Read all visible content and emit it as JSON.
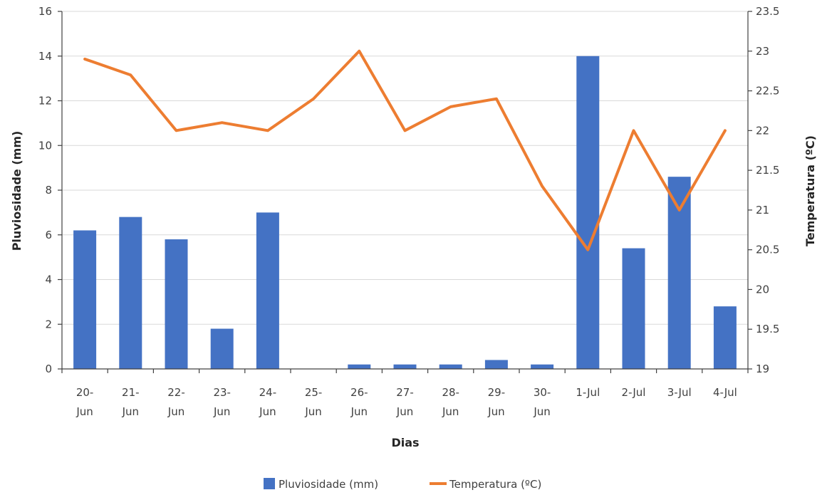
{
  "chart_data": {
    "type": "bar",
    "categories": [
      [
        "20-",
        "Jun"
      ],
      [
        "21-",
        "Jun"
      ],
      [
        "22-",
        "Jun"
      ],
      [
        "23-",
        "Jun"
      ],
      [
        "24-",
        "Jun"
      ],
      [
        "25-",
        "Jun"
      ],
      [
        "26-",
        "Jun"
      ],
      [
        "27-",
        "Jun"
      ],
      [
        "28-",
        "Jun"
      ],
      [
        "29-",
        "Jun"
      ],
      [
        "30-",
        "Jun"
      ],
      [
        "1-Jul"
      ],
      [
        "2-Jul"
      ],
      [
        "3-Jul"
      ],
      [
        "4-Jul"
      ]
    ],
    "series": [
      {
        "name": "Pluviosidade (mm)",
        "type": "bar",
        "axis": "left",
        "color": "#4472c4",
        "values": [
          6.2,
          6.8,
          5.8,
          1.8,
          7.0,
          0,
          0.2,
          0.2,
          0.2,
          0.4,
          0.2,
          14.0,
          5.4,
          8.6,
          2.8
        ]
      },
      {
        "name": "Temperatura (ºC)",
        "type": "line",
        "axis": "right",
        "color": "#ed7d31",
        "values": [
          22.9,
          22.7,
          22.0,
          22.1,
          22.0,
          22.4,
          23.0,
          22.0,
          22.3,
          22.4,
          21.3,
          20.5,
          22.0,
          21.0,
          22.0
        ]
      }
    ],
    "xlabel": "Dias",
    "ylabel": "Pluviosidade (mm)",
    "y2label": "Temperatura (ºC)",
    "ylim": [
      0,
      16
    ],
    "yticks": [
      "0",
      "2",
      "4",
      "6",
      "8",
      "10",
      "12",
      "14",
      "16"
    ],
    "y2lim": [
      19,
      23.5
    ],
    "y2ticks": [
      "19",
      "19.5",
      "20",
      "20.5",
      "21",
      "21.5",
      "22",
      "22.5",
      "23",
      "23.5"
    ],
    "grid": true,
    "legend": "bottom"
  }
}
